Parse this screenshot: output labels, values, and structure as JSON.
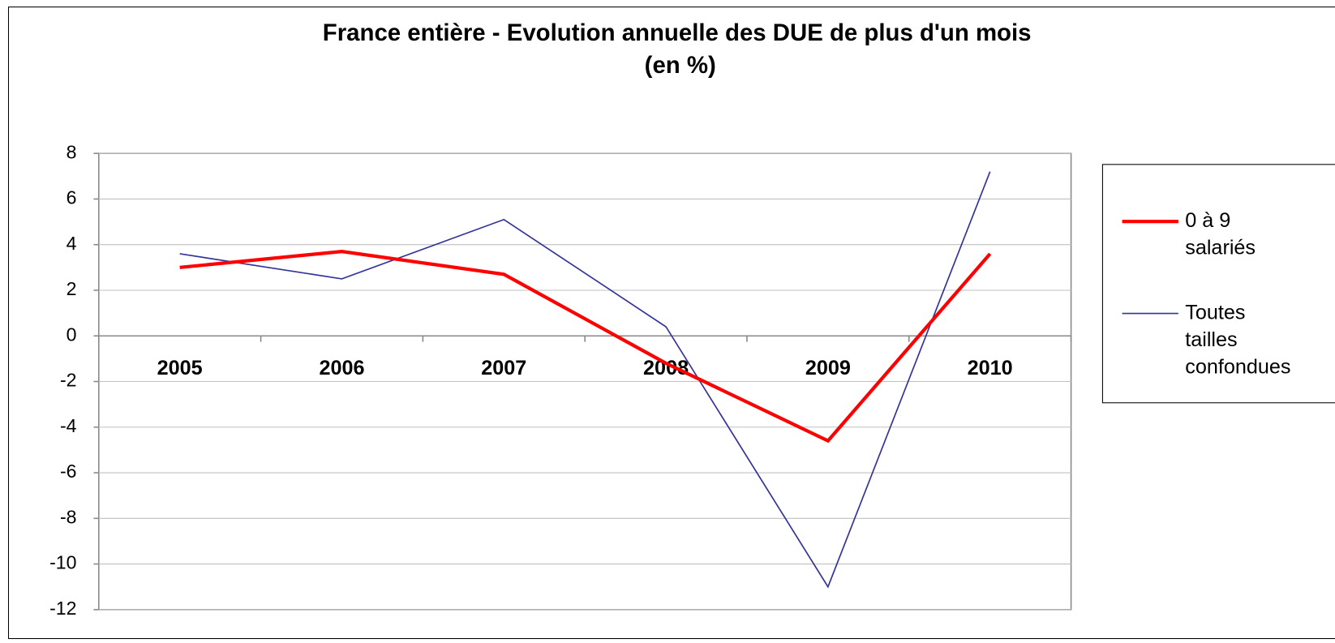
{
  "chart_data": {
    "type": "line",
    "title": "France entière - Evolution annuelle des DUE de plus d'un mois (en %)",
    "categories": [
      "2005",
      "2006",
      "2007",
      "2008",
      "2009",
      "2010"
    ],
    "series": [
      {
        "name": "0 à 9 salariés",
        "color": "#ff0000",
        "values": [
          3.0,
          3.7,
          2.7,
          -1.2,
          -4.6,
          3.6
        ]
      },
      {
        "name": "Toutes tailles confondues",
        "color": "#333399",
        "values": [
          3.6,
          2.5,
          5.1,
          0.4,
          -11.0,
          7.2
        ]
      }
    ],
    "ylim": [
      -12,
      8
    ],
    "yticks": [
      -12,
      -10,
      -8,
      -6,
      -4,
      -2,
      0,
      2,
      4,
      6,
      8
    ],
    "grid": true,
    "legend": "right"
  }
}
